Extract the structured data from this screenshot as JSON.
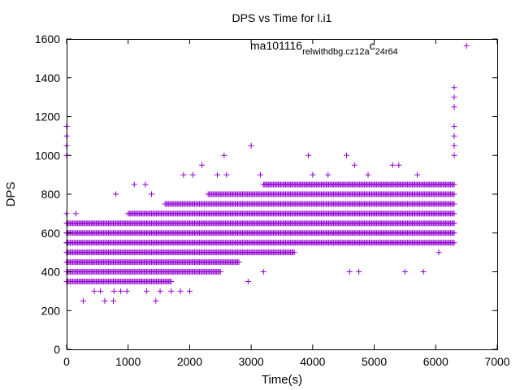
{
  "chart_data": {
    "type": "scatter",
    "title": "DPS vs Time for l.i1",
    "xlabel": "Time(s)",
    "ylabel": "DPS",
    "xlim": [
      0,
      7000
    ],
    "ylim": [
      0,
      1600
    ],
    "xticks": [
      0,
      1000,
      2000,
      3000,
      4000,
      5000,
      6000,
      7000
    ],
    "yticks": [
      0,
      200,
      400,
      600,
      800,
      1000,
      1200,
      1400,
      1600
    ],
    "grid": false,
    "legend_position": "top-right",
    "marker": "plus",
    "series_color": "#9400D3",
    "series": [
      {
        "name_parts": [
          "ma101116",
          "rel",
          "withdbg.cz12a",
          "c",
          "24r64"
        ],
        "name_styles": [
          "normal",
          "sub",
          "sub",
          "normal",
          "sub"
        ],
        "levels": [
          250,
          300,
          350,
          400,
          450,
          500,
          550,
          600,
          650,
          700,
          750,
          800,
          850,
          900,
          950,
          1000,
          1050,
          1100,
          1150,
          1250,
          1300,
          1350
        ],
        "dense_bands": [
          {
            "y": 350,
            "x_range": [
              0,
              1700
            ]
          },
          {
            "y": 400,
            "x_range": [
              0,
              2500
            ]
          },
          {
            "y": 450,
            "x_range": [
              0,
              2800
            ]
          },
          {
            "y": 500,
            "x_range": [
              0,
              3700
            ]
          },
          {
            "y": 550,
            "x_range": [
              0,
              6300
            ]
          },
          {
            "y": 600,
            "x_range": [
              0,
              6300
            ]
          },
          {
            "y": 650,
            "x_range": [
              0,
              6300
            ]
          },
          {
            "y": 700,
            "x_range": [
              1000,
              6300
            ]
          },
          {
            "y": 750,
            "x_range": [
              1600,
              6300
            ]
          },
          {
            "y": 800,
            "x_range": [
              2300,
              6300
            ]
          },
          {
            "y": 850,
            "x_range": [
              3200,
              6300
            ]
          }
        ],
        "points": [
          {
            "x": 0,
            "y": 1150
          },
          {
            "x": 0,
            "y": 1100
          },
          {
            "x": 0,
            "y": 1050
          },
          {
            "x": 0,
            "y": 1000
          },
          {
            "x": 0,
            "y": 700
          },
          {
            "x": 0,
            "y": 650
          },
          {
            "x": 0,
            "y": 600
          },
          {
            "x": 0,
            "y": 550
          },
          {
            "x": 0,
            "y": 500
          },
          {
            "x": 0,
            "y": 450
          },
          {
            "x": 0,
            "y": 400
          },
          {
            "x": 0,
            "y": 350
          },
          {
            "x": 150,
            "y": 700
          },
          {
            "x": 270,
            "y": 250
          },
          {
            "x": 450,
            "y": 300
          },
          {
            "x": 550,
            "y": 300
          },
          {
            "x": 620,
            "y": 250
          },
          {
            "x": 760,
            "y": 250
          },
          {
            "x": 770,
            "y": 300
          },
          {
            "x": 800,
            "y": 800
          },
          {
            "x": 880,
            "y": 300
          },
          {
            "x": 980,
            "y": 300
          },
          {
            "x": 1100,
            "y": 850
          },
          {
            "x": 1300,
            "y": 300
          },
          {
            "x": 1280,
            "y": 850
          },
          {
            "x": 1380,
            "y": 800
          },
          {
            "x": 1450,
            "y": 250
          },
          {
            "x": 1520,
            "y": 300
          },
          {
            "x": 1700,
            "y": 300
          },
          {
            "x": 1850,
            "y": 300
          },
          {
            "x": 1900,
            "y": 900
          },
          {
            "x": 2000,
            "y": 300
          },
          {
            "x": 2050,
            "y": 900
          },
          {
            "x": 2200,
            "y": 950
          },
          {
            "x": 2450,
            "y": 900
          },
          {
            "x": 2560,
            "y": 1000
          },
          {
            "x": 2600,
            "y": 900
          },
          {
            "x": 2950,
            "y": 350
          },
          {
            "x": 3000,
            "y": 1050
          },
          {
            "x": 3150,
            "y": 900
          },
          {
            "x": 3200,
            "y": 400
          },
          {
            "x": 3930,
            "y": 1000
          },
          {
            "x": 4000,
            "y": 900
          },
          {
            "x": 4250,
            "y": 900
          },
          {
            "x": 4550,
            "y": 1000
          },
          {
            "x": 4600,
            "y": 400
          },
          {
            "x": 4680,
            "y": 950
          },
          {
            "x": 4750,
            "y": 400
          },
          {
            "x": 4900,
            "y": 900
          },
          {
            "x": 5300,
            "y": 950
          },
          {
            "x": 5400,
            "y": 950
          },
          {
            "x": 5500,
            "y": 400
          },
          {
            "x": 5700,
            "y": 900
          },
          {
            "x": 5800,
            "y": 400
          },
          {
            "x": 6050,
            "y": 500
          },
          {
            "x": 6300,
            "y": 650
          },
          {
            "x": 6300,
            "y": 1000
          },
          {
            "x": 6300,
            "y": 1050
          },
          {
            "x": 6300,
            "y": 1100
          },
          {
            "x": 6300,
            "y": 1150
          },
          {
            "x": 6300,
            "y": 1250
          },
          {
            "x": 6300,
            "y": 1300
          },
          {
            "x": 6300,
            "y": 1350
          }
        ]
      }
    ]
  }
}
